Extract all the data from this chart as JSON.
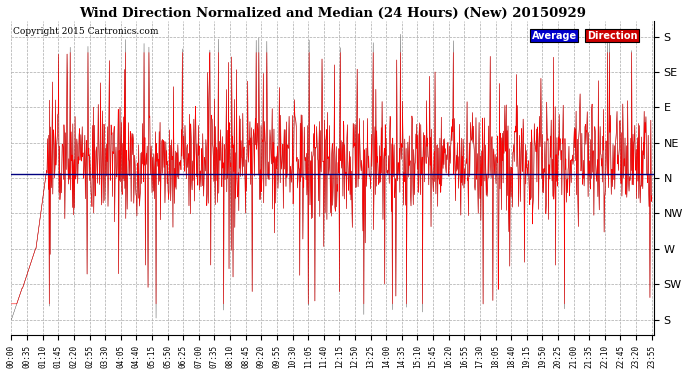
{
  "title": "Wind Direction Normalized and Median (24 Hours) (New) 20150929",
  "copyright": "Copyright 2015 Cartronics.com",
  "bg_color": "#ffffff",
  "plot_bg_color": "#ffffff",
  "grid_color": "#aaaaaa",
  "ytick_labels": [
    "S",
    "SE",
    "E",
    "NE",
    "N",
    "NW",
    "W",
    "SW",
    "S"
  ],
  "ytick_values": [
    180,
    135,
    90,
    45,
    0,
    -45,
    -90,
    -135,
    -180
  ],
  "ylim": [
    -200,
    200
  ],
  "avg_direction_value": 5,
  "legend_label_avg": "Average",
  "legend_label_dir": "Direction",
  "legend_bg_avg": "#0000cc",
  "legend_bg_dir": "#cc0000",
  "legend_text_color": "#ffffff",
  "line_color_red": "#ff0000",
  "line_color_dark": "#222222",
  "avg_line_color": "#000080",
  "n_points": 1440,
  "seed": 17
}
